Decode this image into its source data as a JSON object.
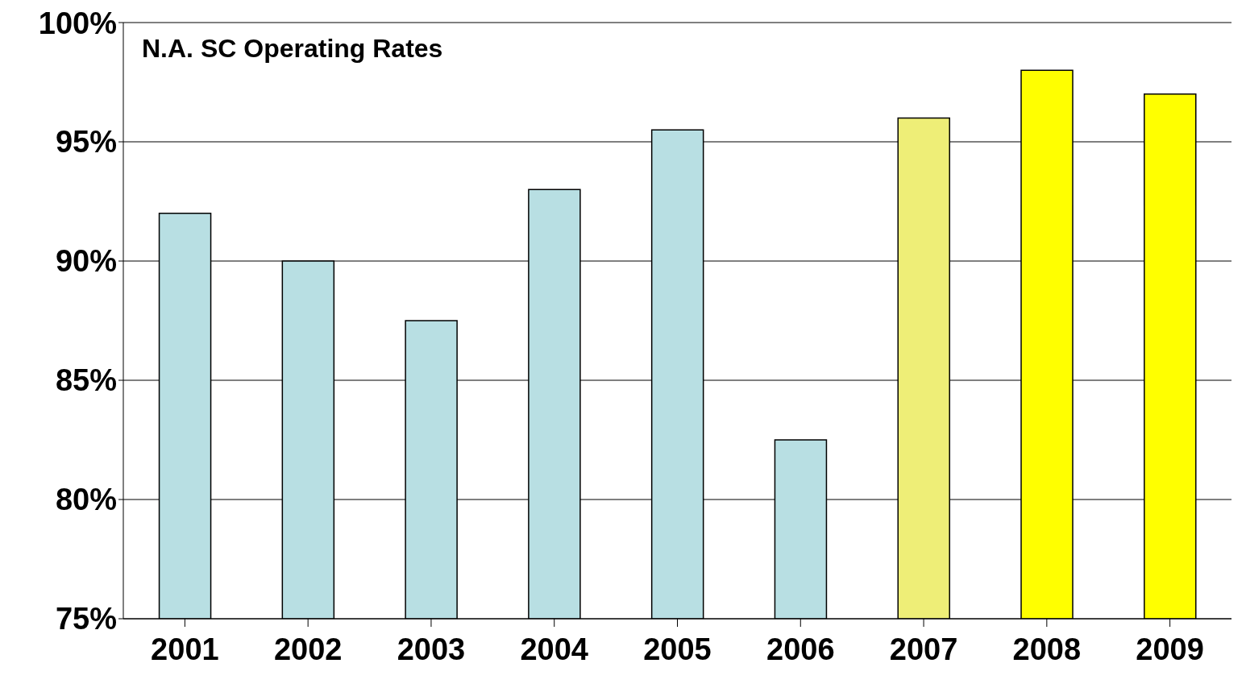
{
  "chart_data": {
    "type": "bar",
    "title": "N.A. SC Operating Rates",
    "categories": [
      "2001",
      "2002",
      "2003",
      "2004",
      "2005",
      "2006",
      "2007",
      "2008",
      "2009"
    ],
    "values": [
      92,
      90,
      87.5,
      93,
      95.5,
      82.5,
      96,
      98,
      97
    ],
    "colors": [
      "#b8dfe3",
      "#b8dfe3",
      "#b8dfe3",
      "#b8dfe3",
      "#b8dfe3",
      "#b8dfe3",
      "#eeee77",
      "#ffff00",
      "#ffff00"
    ],
    "ylim": [
      75,
      100
    ],
    "yticks": [
      {
        "value": 75,
        "label": "75%"
      },
      {
        "value": 80,
        "label": "80%"
      },
      {
        "value": 85,
        "label": "85%"
      },
      {
        "value": 90,
        "label": "90%"
      },
      {
        "value": 95,
        "label": "95%"
      },
      {
        "value": 100,
        "label": "100%"
      }
    ],
    "grid": "y",
    "legend": false
  }
}
